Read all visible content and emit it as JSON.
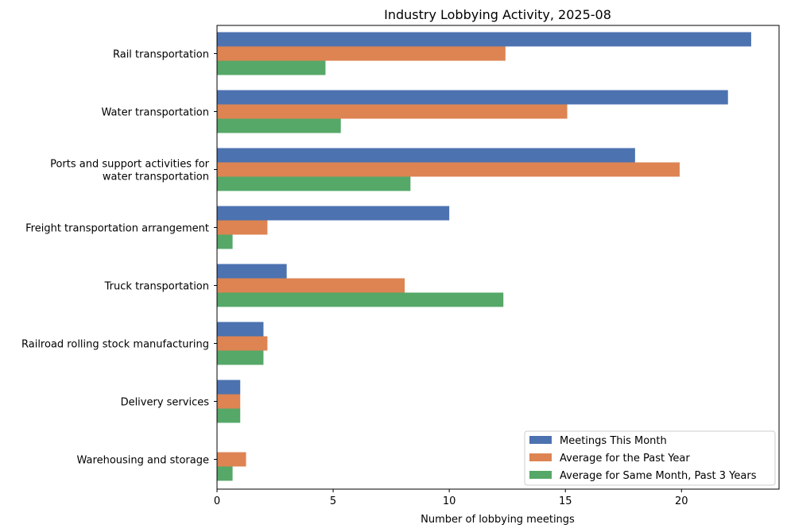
{
  "chart_data": {
    "type": "bar",
    "orientation": "horizontal",
    "title": "Industry Lobbying Activity, 2025-08",
    "xlabel": "Number of lobbying meetings",
    "ylabel": "",
    "xlim": [
      0,
      24.2
    ],
    "xticks": [
      0,
      5,
      10,
      15,
      20
    ],
    "legend_position": "bottom-right",
    "grid": false,
    "categories": [
      [
        "Rail transportation"
      ],
      [
        "Water transportation"
      ],
      [
        "Ports and support activities for",
        "water transportation"
      ],
      [
        "Freight transportation arrangement"
      ],
      [
        "Truck transportation"
      ],
      [
        "Railroad rolling stock manufacturing"
      ],
      [
        "Delivery services"
      ],
      [
        "Warehousing and storage"
      ]
    ],
    "series": [
      {
        "name": "Meetings This Month",
        "color": "#4c72b0",
        "values": [
          23,
          22,
          18,
          10,
          3,
          2,
          1,
          0
        ]
      },
      {
        "name": "Average for the Past Year",
        "color": "#dd8452",
        "values": [
          12.42,
          15.08,
          19.92,
          2.17,
          8.08,
          2.17,
          1.0,
          1.25
        ]
      },
      {
        "name": "Average for Same Month, Past 3 Years",
        "color": "#55a868",
        "values": [
          4.67,
          5.33,
          8.33,
          0.67,
          12.33,
          2.0,
          1.0,
          0.67
        ]
      }
    ]
  }
}
